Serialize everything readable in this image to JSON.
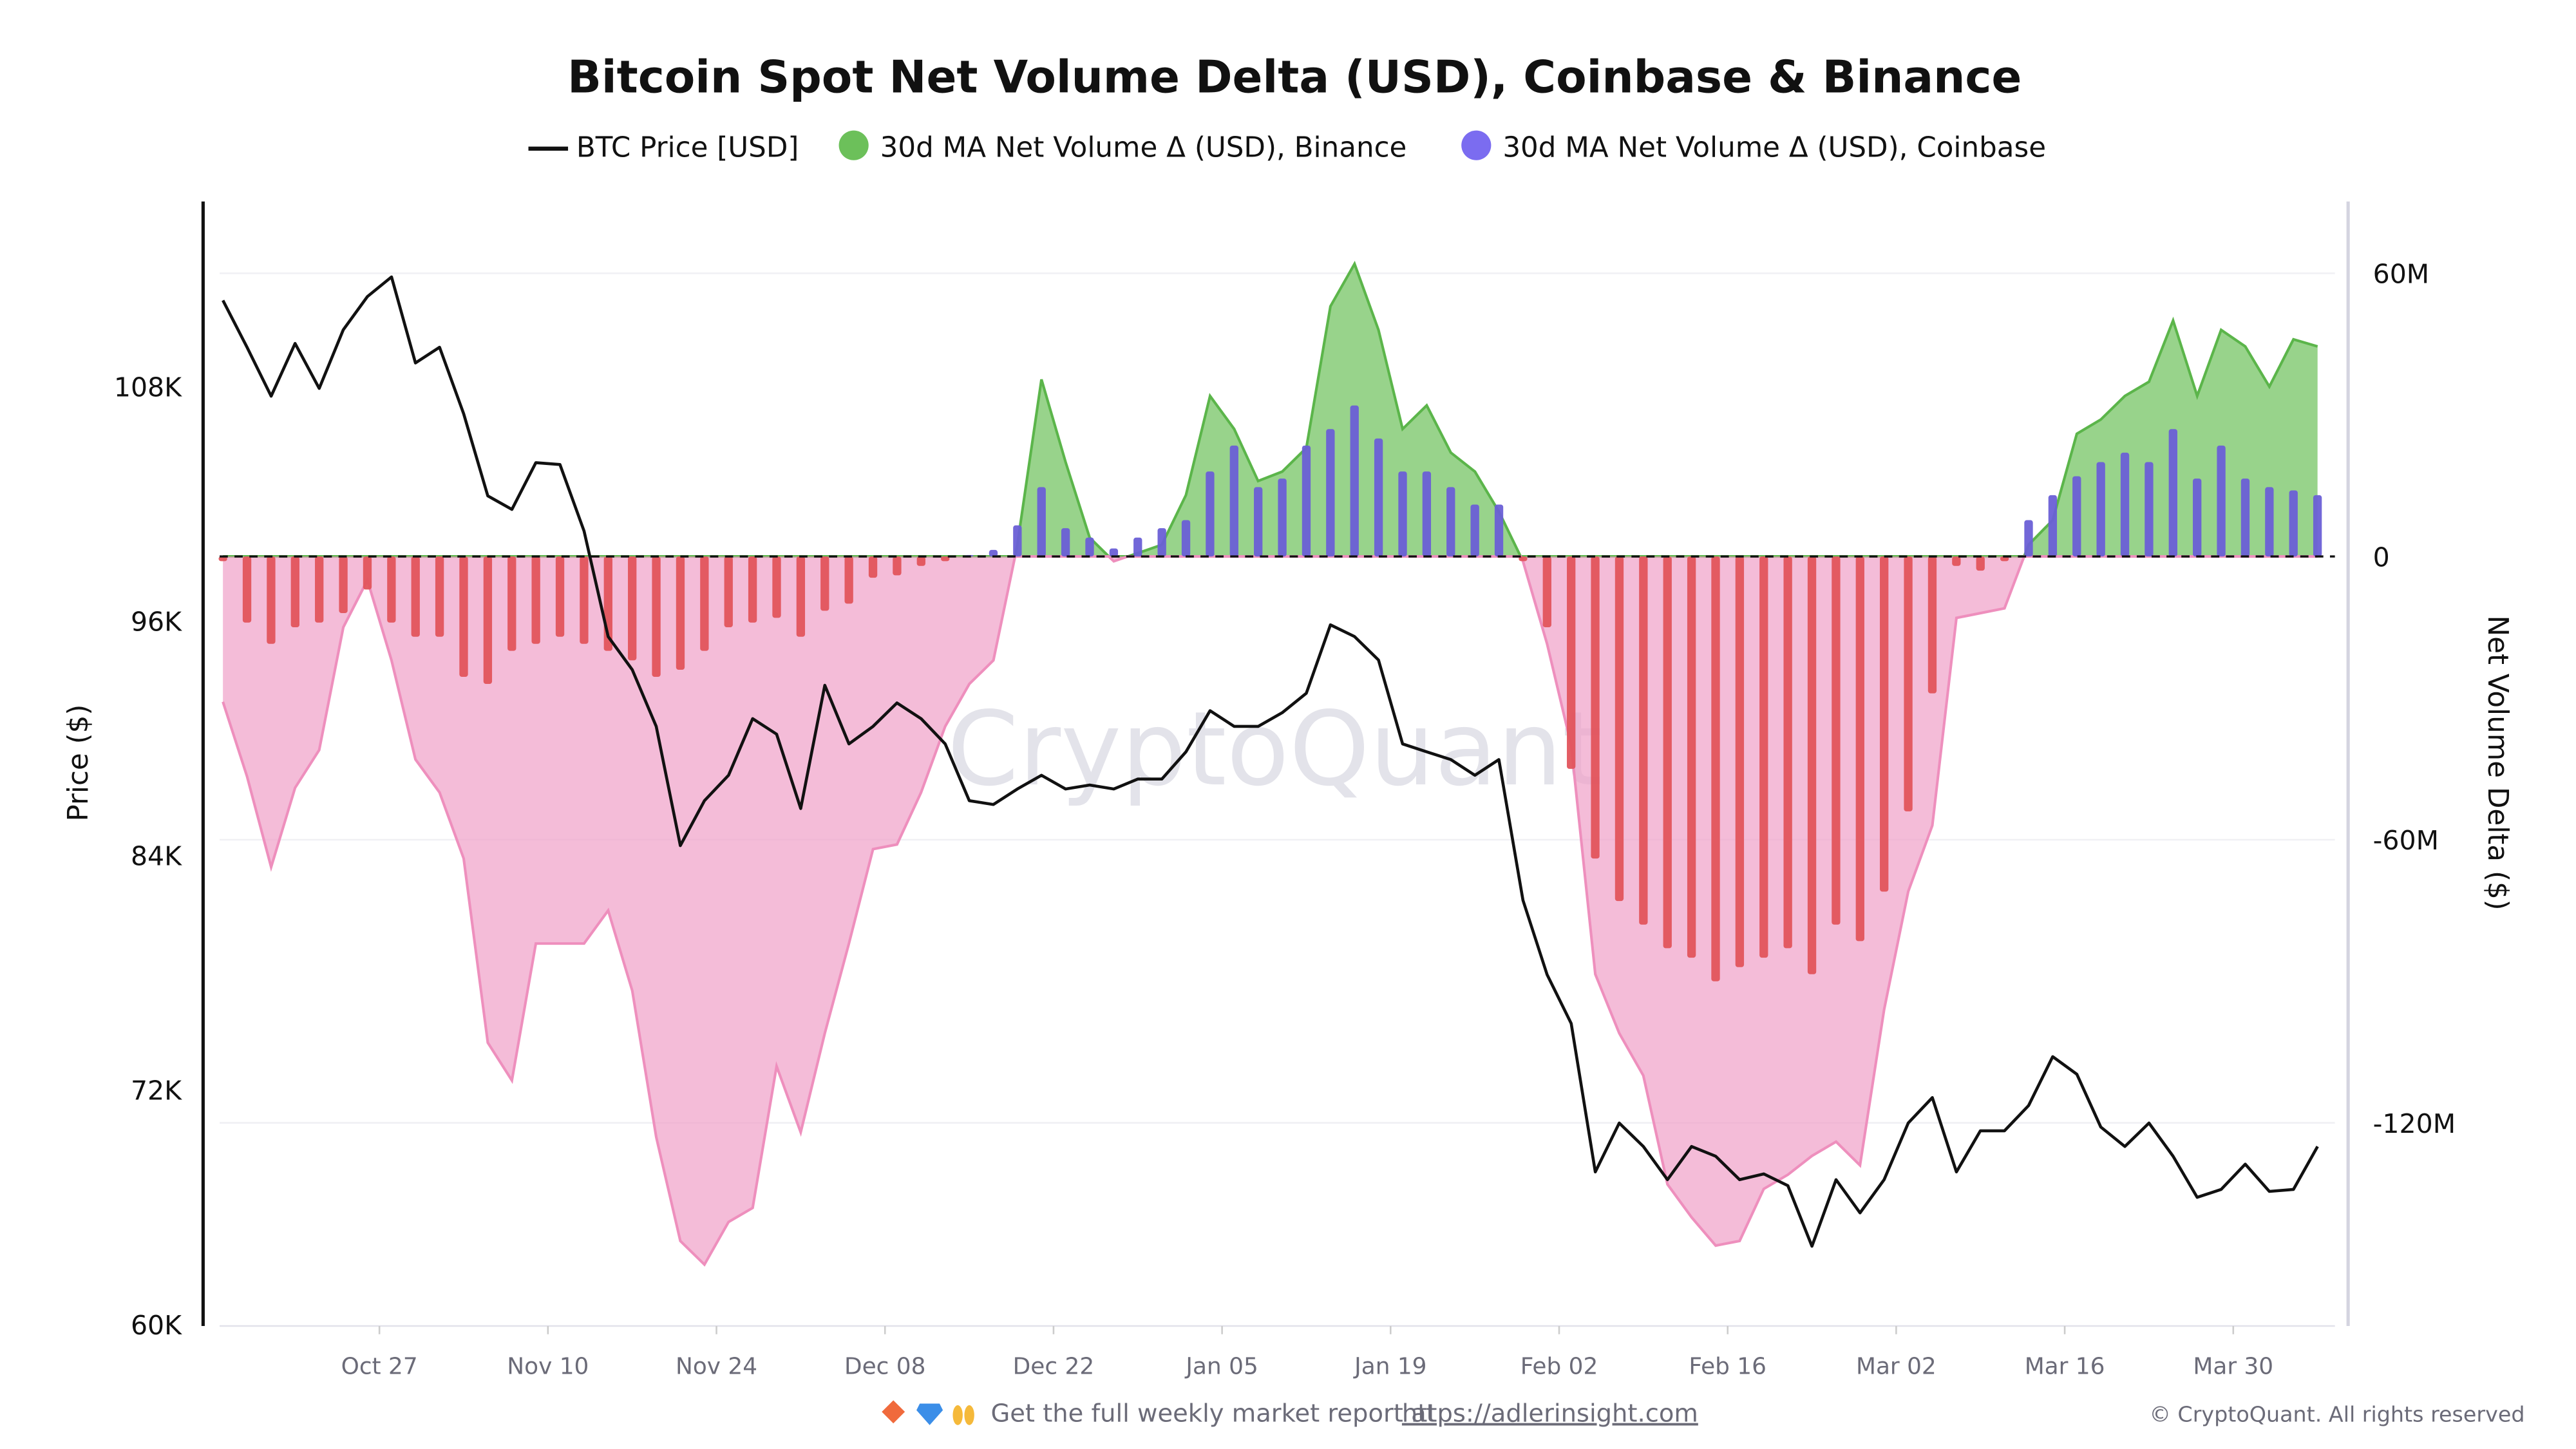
{
  "chart_data": {
    "type": "line+area+bar",
    "title": "Bitcoin Spot Net Volume Delta (USD), Coinbase & Binance",
    "legend": {
      "placement": "top-center",
      "items": [
        {
          "label": "BTC Price [USD]",
          "color": "#111111",
          "marker": "line"
        },
        {
          "label": "30d MA Net Volume Δ (USD), Binance",
          "color": "#6cc05a",
          "marker": "dot"
        },
        {
          "label": "30d MA Net Volume Δ (USD), Coinbase",
          "color": "#7b6cf0",
          "marker": "dot"
        }
      ]
    },
    "y_left": {
      "label": "Price ($)",
      "ticks": [
        "108K",
        "96K",
        "84K",
        "72K",
        "60K"
      ],
      "tick_values": [
        108,
        96,
        84,
        72,
        60
      ],
      "range": [
        60,
        114
      ],
      "unit": "K USD"
    },
    "y_right": {
      "label": "Net Volume Delta ($)",
      "ticks": [
        "60M",
        "0",
        "-60M",
        "-120M"
      ],
      "tick_values": [
        60,
        0,
        -60,
        -120
      ],
      "range": [
        -163,
        74
      ],
      "unit": "M USD"
    },
    "x_ticks": [
      "Oct 27",
      "Nov 10",
      "Nov 24",
      "Dec 08",
      "Dec 22",
      "Jan 05",
      "Jan 19",
      "Feb 02",
      "Feb 16",
      "Mar 02",
      "Mar 16",
      "Mar 30"
    ],
    "x": [
      "Oct 14",
      "Oct 16",
      "Oct 18",
      "Oct 20",
      "Oct 22",
      "Oct 24",
      "Oct 26",
      "Oct 28",
      "Oct 30",
      "Nov 01",
      "Nov 03",
      "Nov 05",
      "Nov 07",
      "Nov 09",
      "Nov 11",
      "Nov 13",
      "Nov 15",
      "Nov 17",
      "Nov 19",
      "Nov 21",
      "Nov 23",
      "Nov 25",
      "Nov 27",
      "Nov 29",
      "Dec 01",
      "Dec 03",
      "Dec 05",
      "Dec 07",
      "Dec 09",
      "Dec 11",
      "Dec 13",
      "Dec 15",
      "Dec 17",
      "Dec 19",
      "Dec 21",
      "Dec 23",
      "Dec 25",
      "Dec 27",
      "Dec 29",
      "Dec 31",
      "Jan 02",
      "Jan 04",
      "Jan 06",
      "Jan 08",
      "Jan 10",
      "Jan 12",
      "Jan 14",
      "Jan 16",
      "Jan 18",
      "Jan 20",
      "Jan 22",
      "Jan 24",
      "Jan 26",
      "Jan 28",
      "Jan 30",
      "Feb 01",
      "Feb 03",
      "Feb 05",
      "Feb 07",
      "Feb 09",
      "Feb 11",
      "Feb 13",
      "Feb 15",
      "Feb 17",
      "Feb 19",
      "Feb 21",
      "Feb 23",
      "Feb 25",
      "Feb 27",
      "Mar 01",
      "Mar 03",
      "Mar 05",
      "Mar 07",
      "Mar 09",
      "Mar 11",
      "Mar 13",
      "Mar 15",
      "Mar 17",
      "Mar 19",
      "Mar 21",
      "Mar 23",
      "Mar 25",
      "Mar 27",
      "Mar 29",
      "Mar 31",
      "Apr 02",
      "Apr 04",
      "Apr 06"
    ],
    "series": [
      {
        "name": "BTC Price [USD]",
        "axis": "left",
        "type": "line",
        "color": "#111111",
        "values": [
          112.4,
          110.0,
          107.5,
          110.2,
          107.9,
          110.9,
          112.6,
          113.6,
          109.2,
          110.0,
          106.6,
          102.4,
          101.7,
          104.1,
          104.0,
          100.6,
          95.2,
          93.5,
          90.6,
          84.5,
          86.8,
          88.1,
          91.0,
          90.2,
          86.4,
          92.7,
          89.7,
          90.6,
          91.8,
          91.0,
          89.7,
          86.8,
          86.6,
          87.4,
          88.1,
          87.4,
          87.6,
          87.4,
          87.9,
          87.9,
          89.3,
          91.4,
          90.6,
          90.6,
          91.3,
          92.3,
          95.8,
          95.2,
          94.0,
          89.7,
          89.3,
          88.9,
          88.1,
          88.9,
          81.7,
          77.9,
          75.4,
          67.8,
          70.3,
          69.1,
          67.4,
          69.1,
          68.6,
          67.4,
          67.7,
          67.1,
          64.0,
          67.4,
          65.7,
          67.4,
          70.3,
          71.6,
          67.8,
          69.9,
          69.9,
          71.2,
          73.7,
          72.8,
          70.1,
          69.1,
          70.3,
          68.6,
          66.5,
          66.9,
          68.2,
          66.8,
          66.9,
          69.1
        ]
      },
      {
        "name": "30d MA Net Volume Δ (USD), Binance",
        "axis": "right",
        "type": "area",
        "positive_color": "#6cc05a",
        "negative_color": "#f0a0c8",
        "values": [
          -30.8,
          -46.6,
          -65.8,
          -49,
          -41,
          -15,
          -5,
          -22,
          -43,
          -50,
          -64,
          -103,
          -111,
          -82,
          -82,
          -82,
          -75,
          -92,
          -123,
          -145,
          -150,
          -141,
          -138,
          -108,
          -122,
          -101,
          -82,
          -62,
          -61,
          -50,
          -36,
          -27,
          -22,
          2.5,
          37.5,
          20,
          4,
          -1,
          0.7,
          2.5,
          13,
          34,
          27,
          16,
          18,
          23,
          53,
          62,
          48,
          27,
          32,
          22,
          18,
          9.5,
          -1,
          -18.5,
          -40,
          -88.5,
          -101,
          -110,
          -133,
          -140,
          -146,
          -145,
          -134,
          -131,
          -127,
          -124,
          -129,
          -96,
          -71,
          -57,
          -13,
          -12,
          -11,
          2.5,
          7.7,
          26,
          29,
          34,
          37,
          50,
          34,
          48,
          44.5,
          36,
          46,
          44.5
        ]
      },
      {
        "name": "30d MA Net Volume Δ (USD), Coinbase",
        "axis": "right",
        "type": "bar",
        "positive_color": "#6a5fd6",
        "negative_color": "#e2545c",
        "values": [
          -1,
          -14,
          -18.5,
          -15,
          -14,
          -12,
          -7,
          -14,
          -17,
          -17,
          -25.5,
          -27,
          -20,
          -18.5,
          -17,
          -18.5,
          -20,
          -22,
          -25.5,
          -24,
          -20,
          -15,
          -14,
          -13,
          -17,
          -11.5,
          -10,
          -4.5,
          -4,
          -2,
          -1,
          0.3,
          1.4,
          6.6,
          14.7,
          6,
          4,
          1.7,
          4,
          6,
          7.7,
          18,
          23.5,
          14.7,
          16.5,
          23.5,
          27,
          32,
          25,
          18,
          18,
          14.7,
          11,
          11,
          -1,
          -15,
          -45,
          -64,
          -73,
          -78,
          -83,
          -85,
          -90,
          -87,
          -85,
          -83,
          -88.5,
          -78,
          -81.5,
          -71,
          -54,
          -29,
          -2,
          -3,
          -1,
          7.7,
          13,
          17,
          20,
          22,
          20,
          27,
          16.5,
          23.5,
          16.5,
          14.7,
          14,
          13
        ]
      }
    ],
    "grid": true,
    "zero_line": "dashed"
  },
  "watermark": "CryptoQuant",
  "footer": {
    "promo_text": "Get the full weekly market report at",
    "link_text": "https://adlerinsight.com",
    "icons": [
      "orange-diamond-icon",
      "gem-icon",
      "raised-hands-icon"
    ],
    "copyright": "© CryptoQuant. All rights reserved"
  }
}
